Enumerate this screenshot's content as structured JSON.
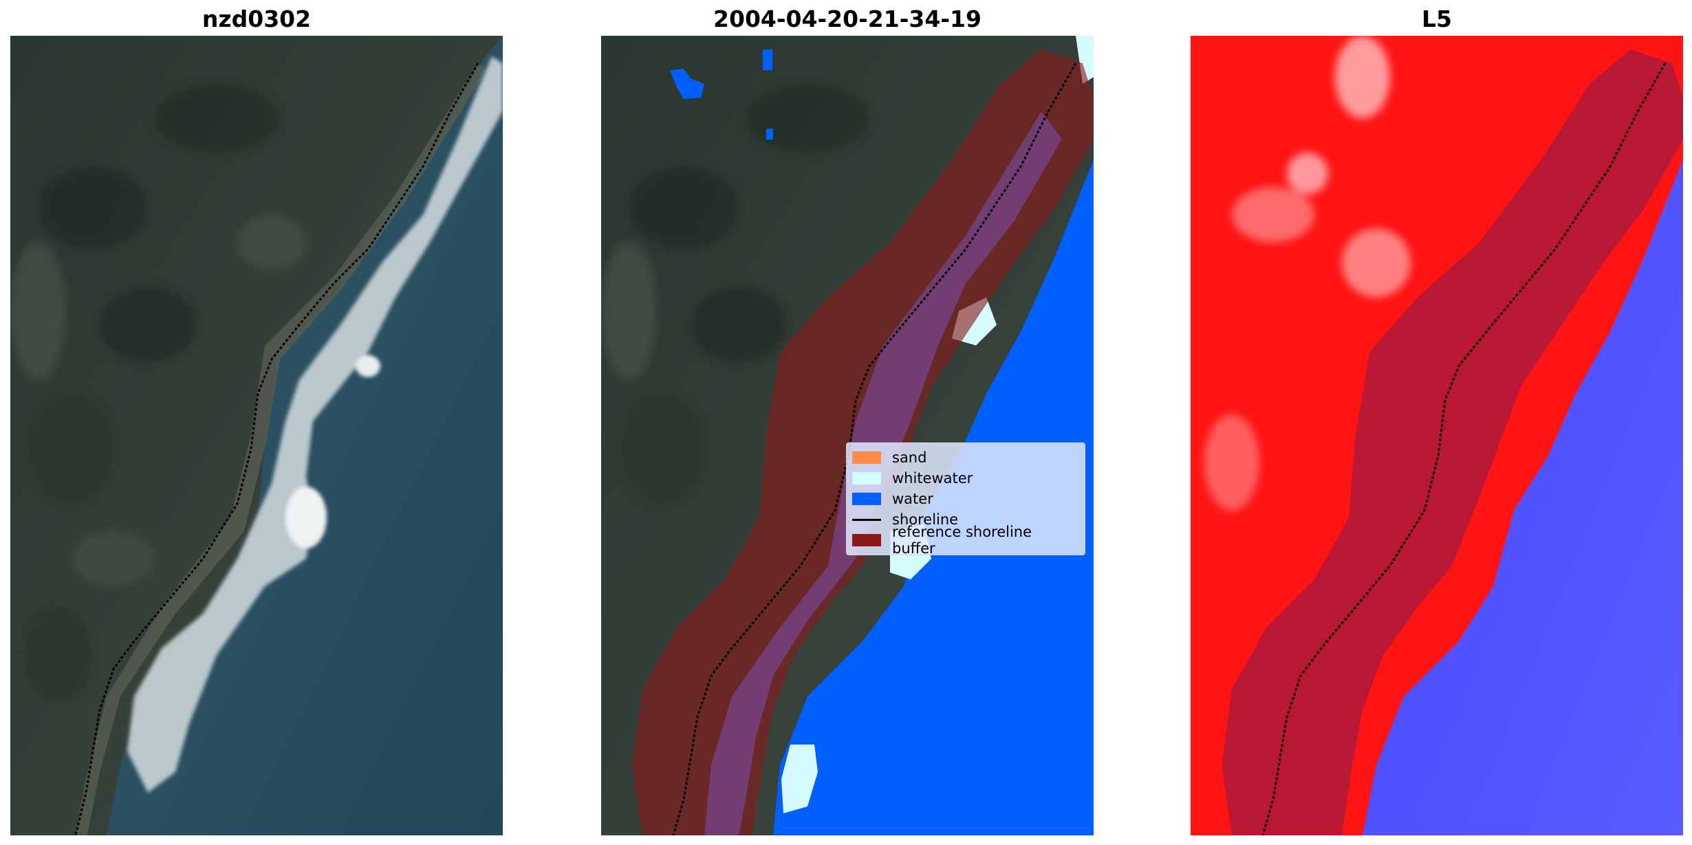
{
  "panels": [
    {
      "title": "nzd0302"
    },
    {
      "title": "2004-04-20-21-34-19"
    },
    {
      "title": "L5"
    }
  ],
  "legend": {
    "items": [
      {
        "label": "sand",
        "color": "#ff8c42",
        "kind": "patch"
      },
      {
        "label": "whitewater",
        "color": "#d5fbff",
        "kind": "patch"
      },
      {
        "label": "water",
        "color": "#0060ff",
        "kind": "patch"
      },
      {
        "label": "shoreline",
        "color": "#000000",
        "kind": "line"
      },
      {
        "label": "reference shoreline buffer",
        "color": "#8b1a1a",
        "kind": "patch"
      }
    ]
  },
  "colors": {
    "land_dark": "#2f3a33",
    "ocean": "#2a4d5e",
    "water_class": "#0060ff",
    "buffer": "#8b1a1a",
    "index_red": "#ff1010",
    "index_blue": "#3a3cff"
  }
}
